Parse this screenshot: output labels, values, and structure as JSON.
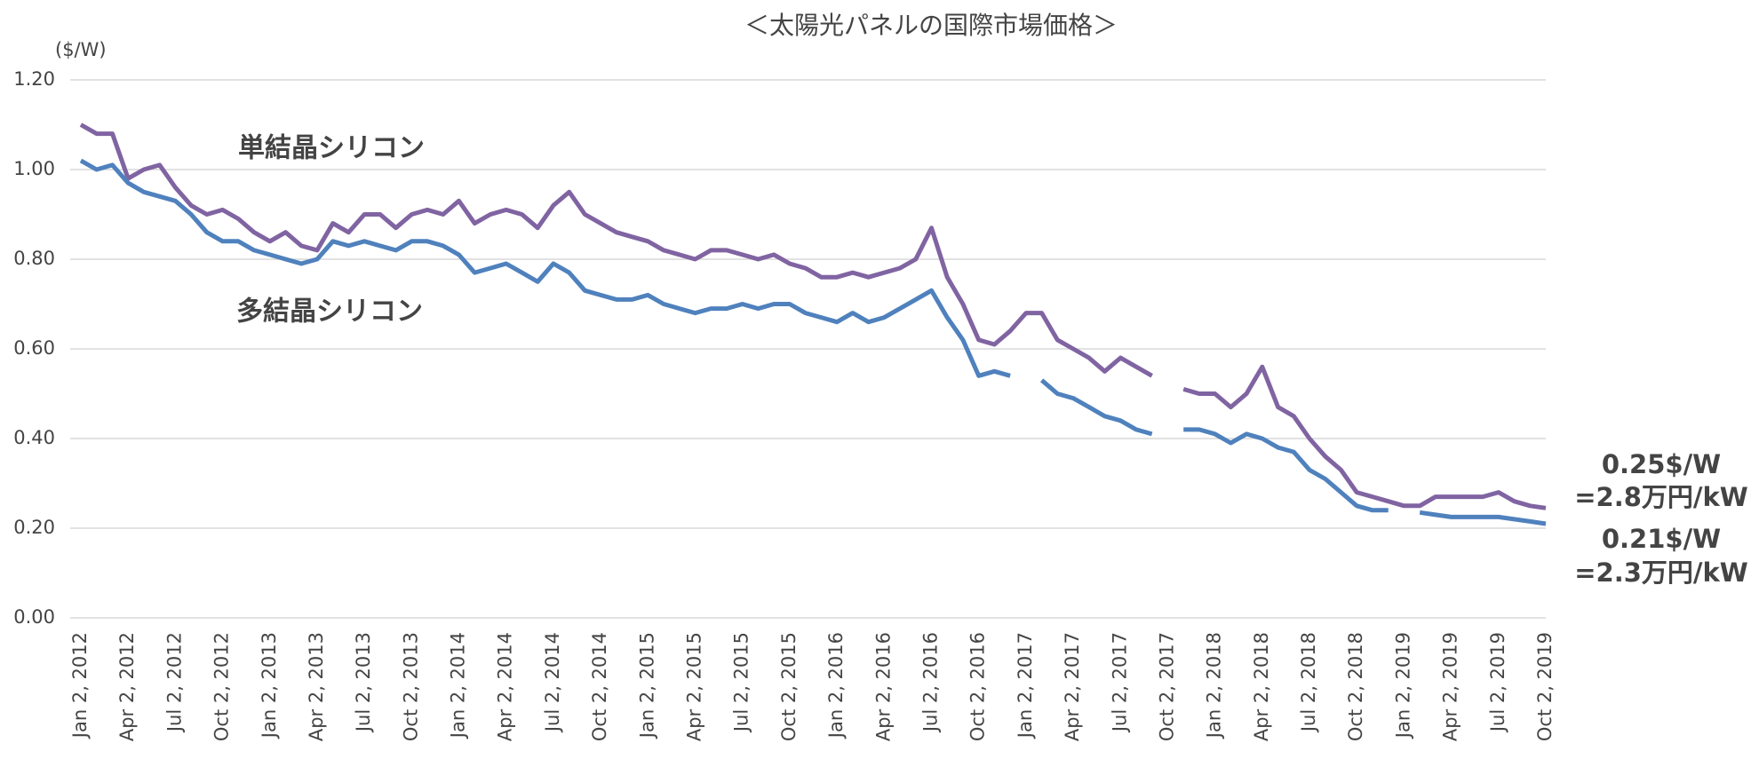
{
  "chart_data": {
    "type": "line",
    "title": "＜太陽光パネルの国際市場価格＞",
    "y_unit": "($/W)",
    "categories": [
      "Jan 2, 2012",
      null,
      null,
      "Apr 2, 2012",
      null,
      null,
      "Jul 2, 2012",
      null,
      null,
      "Oct 2, 2012",
      null,
      null,
      "Jan 2, 2013",
      null,
      null,
      "Apr 2, 2013",
      null,
      null,
      "Jul 2, 2013",
      null,
      null,
      "Oct 2, 2013",
      null,
      null,
      "Jan 2, 2014",
      null,
      null,
      "Apr 2, 2014",
      null,
      null,
      "Jul 2, 2014",
      null,
      null,
      "Oct 2, 2014",
      null,
      null,
      "Jan 2, 2015",
      null,
      null,
      "Apr 2, 2015",
      null,
      null,
      "Jul 2, 2015",
      null,
      null,
      "Oct 2, 2015",
      null,
      null,
      "Jan 2, 2016",
      null,
      null,
      "Apr 2, 2016",
      null,
      null,
      "Jul 2, 2016",
      null,
      null,
      "Oct 2, 2016",
      null,
      null,
      "Jan 2, 2017",
      null,
      null,
      "Apr 2, 2017",
      null,
      null,
      "Jul 2, 2017",
      null,
      null,
      "Oct 2, 2017",
      null,
      null,
      "Jan 2, 2018",
      null,
      null,
      "Apr 2, 2018",
      null,
      null,
      "Jul 2, 2018",
      null,
      null,
      "Oct 2, 2018",
      null,
      null,
      "Jan 2, 2019",
      null,
      null,
      "Apr 2, 2019",
      null,
      null,
      "Jul 2, 2019",
      null,
      null,
      "Oct 2, 2019"
    ],
    "series": [
      {
        "name": "単結晶シリコン",
        "color": "#8064a2",
        "values": [
          1.1,
          1.08,
          1.08,
          0.98,
          1.0,
          1.01,
          0.96,
          0.92,
          0.9,
          0.91,
          0.89,
          0.86,
          0.84,
          0.86,
          0.83,
          0.82,
          0.88,
          0.86,
          0.9,
          0.9,
          0.87,
          0.9,
          0.91,
          0.9,
          0.93,
          0.88,
          0.9,
          0.91,
          0.9,
          0.87,
          0.92,
          0.95,
          0.9,
          0.88,
          0.86,
          0.85,
          0.84,
          0.82,
          0.81,
          0.8,
          0.82,
          0.82,
          0.81,
          0.8,
          0.81,
          0.79,
          0.78,
          0.76,
          0.76,
          0.77,
          0.76,
          0.77,
          0.78,
          0.8,
          0.87,
          0.76,
          0.7,
          0.62,
          0.61,
          0.64,
          0.68,
          0.68,
          0.62,
          0.6,
          0.58,
          0.55,
          0.58,
          0.56,
          0.54,
          null,
          0.51,
          0.5,
          0.5,
          0.47,
          0.5,
          0.56,
          0.47,
          0.45,
          0.4,
          0.36,
          0.33,
          0.28,
          0.27,
          0.26,
          0.25,
          0.25,
          0.27,
          0.27,
          0.27,
          0.27,
          0.28,
          0.26,
          0.25,
          0.245
        ]
      },
      {
        "name": "多結晶シリコン",
        "color": "#4f81bd",
        "values": [
          1.02,
          1.0,
          1.01,
          0.97,
          0.95,
          0.94,
          0.93,
          0.9,
          0.86,
          0.84,
          0.84,
          0.82,
          0.81,
          0.8,
          0.79,
          0.8,
          0.84,
          0.83,
          0.84,
          0.83,
          0.82,
          0.84,
          0.84,
          0.83,
          0.81,
          0.77,
          0.78,
          0.79,
          0.77,
          0.75,
          0.79,
          0.77,
          0.73,
          0.72,
          0.71,
          0.71,
          0.72,
          0.7,
          0.69,
          0.68,
          0.69,
          0.69,
          0.7,
          0.69,
          0.7,
          0.7,
          0.68,
          0.67,
          0.66,
          0.68,
          0.66,
          0.67,
          0.69,
          0.71,
          0.73,
          0.67,
          0.62,
          0.54,
          0.55,
          0.54,
          null,
          0.53,
          0.5,
          0.49,
          0.47,
          0.45,
          0.44,
          0.42,
          0.41,
          null,
          0.42,
          0.42,
          0.41,
          0.39,
          0.41,
          0.4,
          0.38,
          0.37,
          0.33,
          0.31,
          0.28,
          0.25,
          0.24,
          0.24,
          null,
          0.235,
          0.23,
          0.225,
          0.225,
          0.225,
          0.225,
          0.22,
          0.215,
          0.21
        ]
      }
    ],
    "annotations": [
      {
        "text": [
          "0.25$/W",
          "=2.8万円/kW"
        ],
        "color": "#8064a2"
      },
      {
        "text": [
          "0.21$/W",
          "=2.3万円/kW"
        ],
        "color": "#4f81bd"
      }
    ],
    "ylim": [
      0,
      1.2
    ],
    "yticks": [
      {
        "value": 0,
        "label": "0.00"
      },
      {
        "value": 0.2,
        "label": "0.20"
      },
      {
        "value": 0.4,
        "label": "0.40"
      },
      {
        "value": 0.6,
        "label": "0.60"
      },
      {
        "value": 0.8,
        "label": "0.80"
      },
      {
        "value": 1.0,
        "label": "1.00"
      },
      {
        "value": 1.2,
        "label": "1.20"
      }
    ],
    "grid": true
  }
}
